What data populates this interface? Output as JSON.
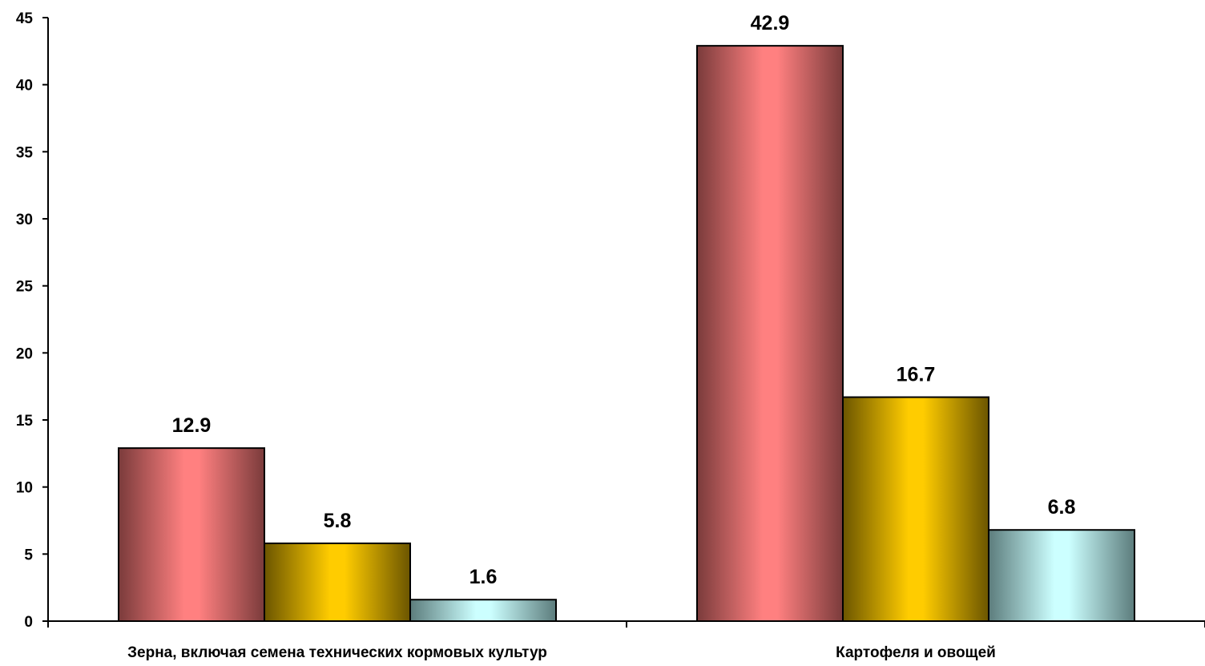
{
  "chart_data": {
    "type": "bar",
    "categories": [
      "Зерна, включая семена технических кормовых культур",
      "Картофеля и овощей"
    ],
    "series": [
      {
        "values": [
          12.9,
          42.9
        ],
        "color": "#FF8080",
        "shade": "#7A3B3B"
      },
      {
        "values": [
          5.8,
          16.7
        ],
        "color": "#FFCC00",
        "shade": "#6B5500"
      },
      {
        "values": [
          1.6,
          6.8
        ],
        "color": "#CCFFFF",
        "shade": "#5C7C7C"
      }
    ],
    "value_labels": [
      [
        "12.9",
        "42.9"
      ],
      [
        "5.8",
        "16.7"
      ],
      [
        "1.6",
        "6.8"
      ]
    ],
    "y_ticks": [
      "0",
      "5",
      "10",
      "15",
      "20",
      "25",
      "30",
      "35",
      "40",
      "45"
    ],
    "ylim": [
      0,
      45
    ],
    "title": "",
    "xlabel": "",
    "ylabel": "",
    "grid": false,
    "legend": "none"
  }
}
